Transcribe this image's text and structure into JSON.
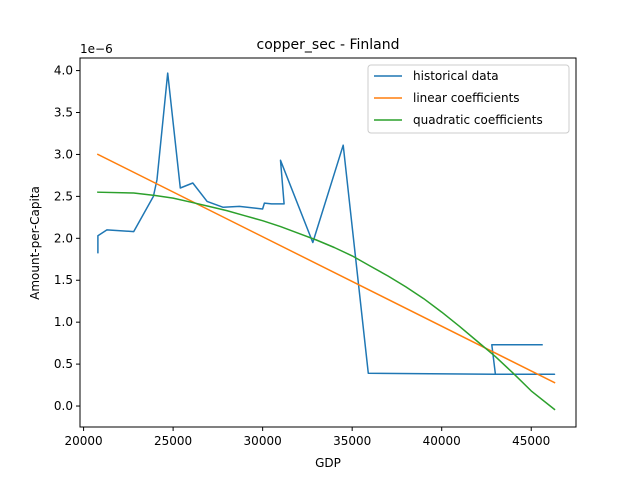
{
  "chart_data": {
    "type": "line",
    "title": "copper_sec - Finland",
    "xlabel": "GDP",
    "ylabel": "Amount-per-Capita",
    "y_offset_label": "1e−6",
    "xlim": [
      19800,
      47500
    ],
    "ylim": [
      -0.25,
      4.15
    ],
    "xticks": [
      20000,
      25000,
      30000,
      35000,
      40000,
      45000
    ],
    "xtick_labels": [
      "20000",
      "25000",
      "30000",
      "35000",
      "40000",
      "45000"
    ],
    "yticks": [
      0.0,
      0.5,
      1.0,
      1.5,
      2.0,
      2.5,
      3.0,
      3.5,
      4.0
    ],
    "ytick_labels": [
      "0.0",
      "0.5",
      "1.0",
      "1.5",
      "2.0",
      "2.5",
      "3.0",
      "3.5",
      "4.0"
    ],
    "grid": false,
    "legend_position": "upper-right",
    "series": [
      {
        "name": "historical data",
        "color": "#1f77b4",
        "x": [
          20800,
          20800,
          21300,
          22800,
          23900,
          24100,
          24700,
          25400,
          26100,
          26900,
          27800,
          28700,
          30000,
          30100,
          30500,
          31200,
          31000,
          32800,
          34500,
          35900,
          43000,
          46300,
          43000,
          42800,
          45600
        ],
        "y": [
          1.83,
          2.03,
          2.1,
          2.08,
          2.5,
          2.7,
          3.97,
          2.6,
          2.66,
          2.44,
          2.37,
          2.38,
          2.35,
          2.42,
          2.41,
          2.41,
          2.93,
          1.95,
          3.11,
          0.39,
          0.38,
          0.38,
          0.38,
          0.73,
          0.73
        ]
      },
      {
        "name": "linear coefficients",
        "color": "#ff7f0e",
        "x": [
          20800,
          46300
        ],
        "y": [
          3.0,
          0.28
        ]
      },
      {
        "name": "quadratic coefficients",
        "color": "#2ca02c",
        "x": [
          20800,
          22800,
          24000,
          25000,
          26000,
          27000,
          28000,
          29000,
          30000,
          31000,
          32000,
          33000,
          34000,
          35000,
          36000,
          37000,
          38000,
          39000,
          40000,
          41000,
          42000,
          43000,
          44000,
          45000,
          46300
        ],
        "y": [
          2.55,
          2.54,
          2.51,
          2.48,
          2.43,
          2.38,
          2.33,
          2.27,
          2.21,
          2.14,
          2.06,
          1.98,
          1.89,
          1.79,
          1.67,
          1.55,
          1.42,
          1.28,
          1.12,
          0.95,
          0.77,
          0.59,
          0.39,
          0.18,
          -0.04
        ]
      }
    ]
  }
}
